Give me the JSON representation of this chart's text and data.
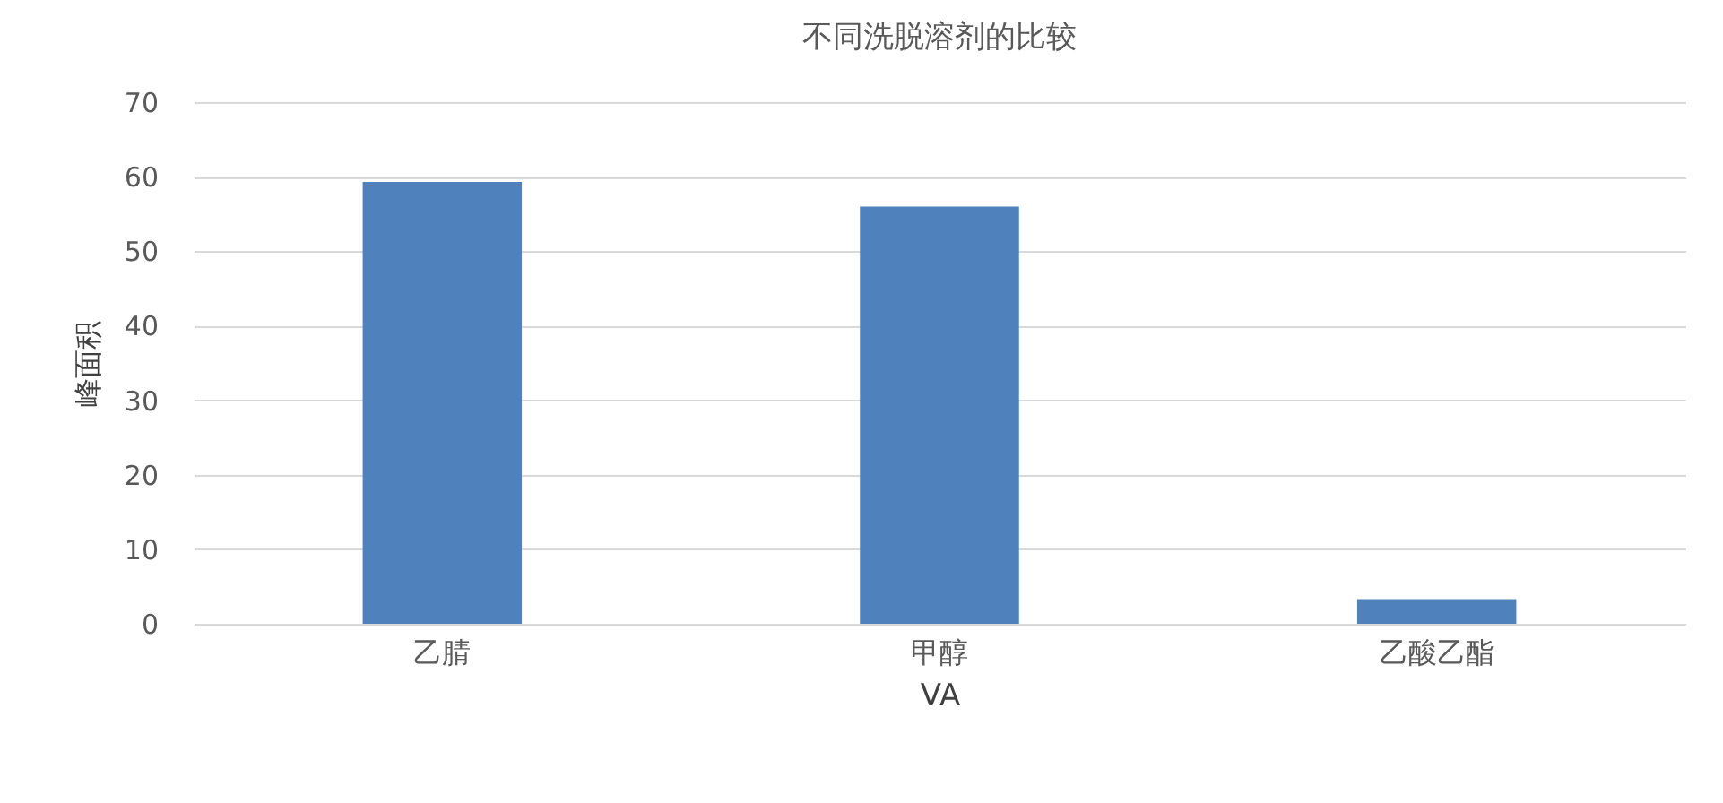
{
  "chart_data": {
    "type": "bar",
    "title": "不同洗脱溶剂的比较",
    "xlabel": "VA",
    "ylabel": "峰面积",
    "categories": [
      "乙腈",
      "甲醇",
      "乙酸乙酯"
    ],
    "values": [
      59.3,
      56.0,
      3.3
    ],
    "color": "#4f81bd",
    "ylim": [
      0,
      70
    ],
    "yticks": [
      0,
      10,
      20,
      30,
      40,
      50,
      60,
      70
    ],
    "grid": "y"
  }
}
